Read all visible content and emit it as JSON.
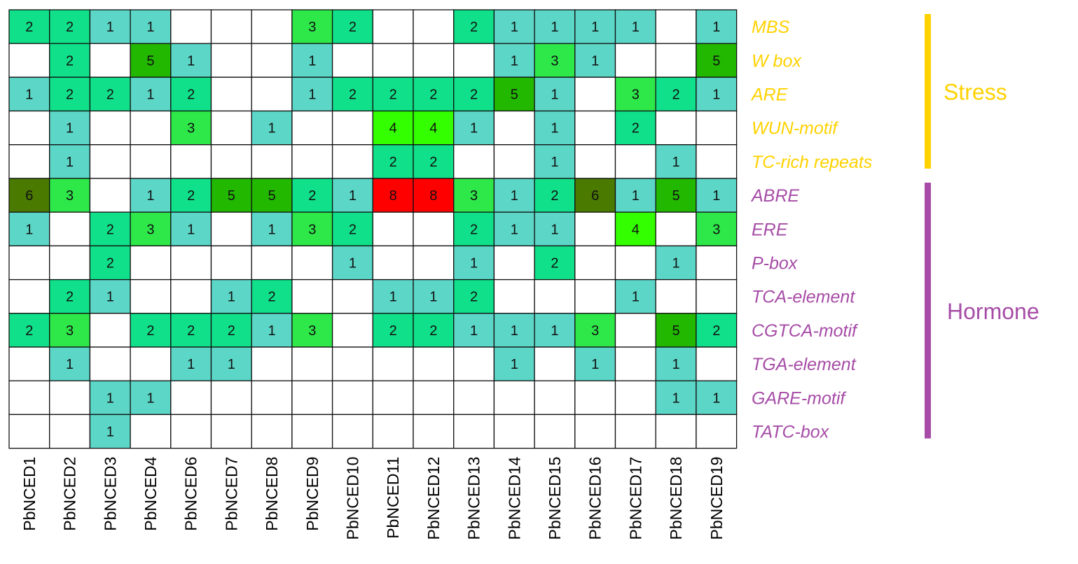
{
  "chart_data": {
    "type": "heatmap",
    "columns": [
      "PbNCED1",
      "PbNCED2",
      "PbNCED3",
      "PbNCED4",
      "PbNCED6",
      "PbNCED7",
      "PbNCED8",
      "PbNCED9",
      "PbNCED10",
      "PbNCED11",
      "PbNCED12",
      "PbNCED13",
      "PbNCED14",
      "PbNCED15",
      "PbNCED16",
      "PbNCED17",
      "PbNCED18",
      "PbNCED19"
    ],
    "rows": [
      "MBS",
      "W box",
      "ARE",
      "WUN-motif",
      "TC-rich repeats",
      "ABRE",
      "ERE",
      "P-box",
      "TCA-element",
      "CGTCA-motif",
      "TGA-element",
      "GARE-motif",
      "TATC-box"
    ],
    "row_groups": [
      {
        "name": "Stress",
        "color": "#ffd200",
        "rows": [
          "MBS",
          "W box",
          "ARE",
          "WUN-motif",
          "TC-rich repeats"
        ]
      },
      {
        "name": "Hormone",
        "color": "#a64ca6",
        "rows": [
          "ABRE",
          "ERE",
          "P-box",
          "TCA-element",
          "CGTCA-motif",
          "TGA-element",
          "GARE-motif",
          "TATC-box"
        ]
      }
    ],
    "values": [
      [
        2,
        2,
        1,
        1,
        0,
        0,
        0,
        3,
        2,
        0,
        0,
        2,
        1,
        1,
        1,
        1,
        0,
        1
      ],
      [
        0,
        2,
        0,
        5,
        1,
        0,
        0,
        1,
        0,
        0,
        0,
        0,
        1,
        3,
        1,
        0,
        0,
        5
      ],
      [
        1,
        2,
        2,
        1,
        2,
        0,
        0,
        1,
        2,
        2,
        2,
        2,
        5,
        1,
        0,
        3,
        2,
        1
      ],
      [
        0,
        1,
        0,
        0,
        3,
        0,
        1,
        0,
        0,
        4,
        4,
        1,
        0,
        1,
        0,
        2,
        0,
        0
      ],
      [
        0,
        1,
        0,
        0,
        0,
        0,
        0,
        0,
        0,
        2,
        2,
        0,
        0,
        1,
        0,
        0,
        1,
        0
      ],
      [
        6,
        3,
        0,
        1,
        2,
        5,
        5,
        2,
        1,
        8,
        8,
        3,
        1,
        2,
        6,
        1,
        5,
        1
      ],
      [
        1,
        0,
        2,
        3,
        1,
        0,
        1,
        3,
        2,
        0,
        0,
        2,
        1,
        1,
        0,
        4,
        0,
        3
      ],
      [
        0,
        0,
        2,
        0,
        0,
        0,
        0,
        0,
        1,
        0,
        0,
        1,
        0,
        2,
        0,
        0,
        1,
        0
      ],
      [
        0,
        2,
        1,
        0,
        0,
        1,
        2,
        0,
        0,
        1,
        1,
        2,
        0,
        0,
        0,
        1,
        0,
        0
      ],
      [
        2,
        3,
        0,
        2,
        2,
        2,
        1,
        3,
        0,
        2,
        2,
        1,
        1,
        1,
        3,
        0,
        5,
        2
      ],
      [
        0,
        1,
        0,
        0,
        1,
        1,
        0,
        0,
        0,
        0,
        0,
        0,
        1,
        0,
        1,
        0,
        1,
        0
      ],
      [
        0,
        0,
        1,
        1,
        0,
        0,
        0,
        0,
        0,
        0,
        0,
        0,
        0,
        0,
        0,
        0,
        1,
        1
      ],
      [
        0,
        0,
        1,
        0,
        0,
        0,
        0,
        0,
        0,
        0,
        0,
        0,
        0,
        0,
        0,
        0,
        0,
        0
      ]
    ],
    "color_scale": {
      "0": "#ffffff",
      "1": "#5cd6c7",
      "2": "#11e08a",
      "3": "#2ee84a",
      "4": "#33ff00",
      "5": "#22b800",
      "6": "#4a7a00",
      "8": "#ff0000"
    }
  }
}
